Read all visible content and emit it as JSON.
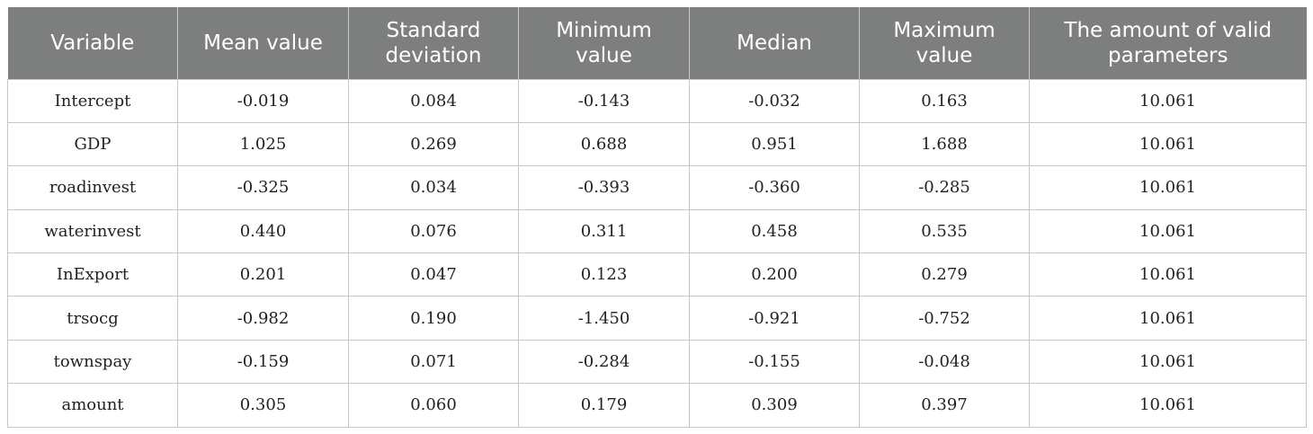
{
  "table": {
    "headers": [
      "Variable",
      "Mean value",
      "Standard deviation",
      "Minimum value",
      "Median",
      "Maximum value",
      "The amount of valid parameters"
    ],
    "rows": [
      [
        "Intercept",
        "-0.019",
        "0.084",
        "-0.143",
        "-0.032",
        "0.163",
        "10.061"
      ],
      [
        "GDP",
        "1.025",
        "0.269",
        "0.688",
        "0.951",
        "1.688",
        "10.061"
      ],
      [
        "roadinvest",
        "-0.325",
        "0.034",
        "-0.393",
        "-0.360",
        "-0.285",
        "10.061"
      ],
      [
        "waterinvest",
        "0.440",
        "0.076",
        "0.311",
        "0.458",
        "0.535",
        "10.061"
      ],
      [
        "InExport",
        "0.201",
        "0.047",
        "0.123",
        "0.200",
        "0.279",
        "10.061"
      ],
      [
        "trsocg",
        "-0.982",
        "0.190",
        "-1.450",
        "-0.921",
        "-0.752",
        "10.061"
      ],
      [
        "townspay",
        "-0.159",
        "0.071",
        "-0.284",
        "-0.155",
        "-0.048",
        "10.061"
      ],
      [
        "amount",
        "0.305",
        "0.060",
        "0.179",
        "0.309",
        "0.397",
        "10.061"
      ]
    ]
  }
}
